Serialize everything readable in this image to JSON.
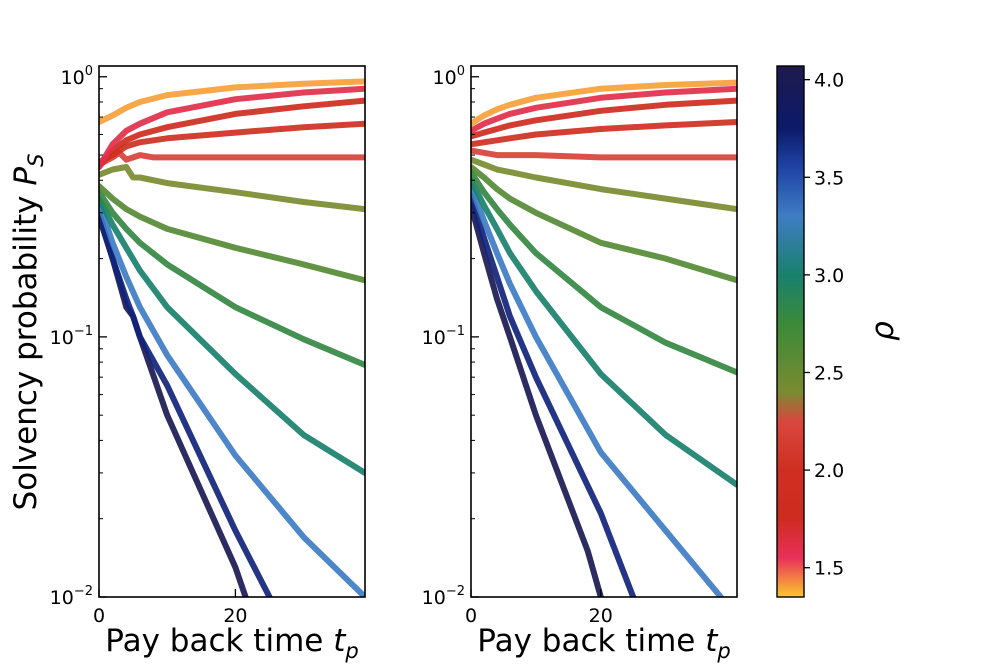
{
  "chart_data": [
    {
      "type": "line",
      "panel": "left",
      "xlabel": "Pay back time t_p",
      "ylabel": "Solvency probability P_S",
      "yscale": "log",
      "xlim": [
        0,
        39
      ],
      "ylim": [
        0.01,
        1.1
      ],
      "xticks": [
        {
          "value": 0,
          "label": "0"
        },
        {
          "value": 20,
          "label": "20"
        }
      ],
      "yticks": [
        {
          "value": 1,
          "base": "10",
          "exp": "0"
        },
        {
          "value": 0.1,
          "base": "10",
          "exp": "−1"
        },
        {
          "value": 0.01,
          "base": "10",
          "exp": "−2"
        }
      ],
      "grid": false,
      "series": [
        {
          "rho": 1.4,
          "x": [
            0,
            2,
            4,
            6,
            10,
            20,
            30,
            39
          ],
          "y": [
            0.67,
            0.71,
            0.76,
            0.8,
            0.85,
            0.91,
            0.94,
            0.96
          ]
        },
        {
          "rho": 1.6,
          "x": [
            0,
            2,
            4,
            6,
            10,
            20,
            30,
            39
          ],
          "y": [
            0.45,
            0.55,
            0.62,
            0.66,
            0.73,
            0.82,
            0.87,
            0.9
          ]
        },
        {
          "rho": 1.8,
          "x": [
            0,
            2,
            4,
            6,
            10,
            20,
            30,
            39
          ],
          "y": [
            0.45,
            0.52,
            0.57,
            0.6,
            0.64,
            0.72,
            0.77,
            0.81
          ]
        },
        {
          "rho": 2.0,
          "x": [
            0,
            2,
            4,
            6,
            10,
            20,
            30,
            39
          ],
          "y": [
            0.47,
            0.5,
            0.54,
            0.56,
            0.58,
            0.61,
            0.64,
            0.66
          ]
        },
        {
          "rho": 2.2,
          "x": [
            0,
            2,
            3,
            4,
            6,
            8,
            10,
            20,
            30,
            39
          ],
          "y": [
            0.46,
            0.49,
            0.51,
            0.48,
            0.5,
            0.49,
            0.49,
            0.49,
            0.49,
            0.49
          ]
        },
        {
          "rho": 2.4,
          "x": [
            0,
            2,
            4,
            5,
            6,
            10,
            20,
            30,
            39
          ],
          "y": [
            0.42,
            0.44,
            0.45,
            0.41,
            0.41,
            0.39,
            0.36,
            0.33,
            0.31
          ]
        },
        {
          "rho": 2.6,
          "x": [
            0,
            2,
            4,
            6,
            10,
            20,
            30,
            39
          ],
          "y": [
            0.38,
            0.34,
            0.31,
            0.29,
            0.26,
            0.22,
            0.19,
            0.165
          ]
        },
        {
          "rho": 2.8,
          "x": [
            0,
            2,
            4,
            6,
            10,
            20,
            30,
            39
          ],
          "y": [
            0.36,
            0.3,
            0.26,
            0.23,
            0.19,
            0.13,
            0.098,
            0.078
          ]
        },
        {
          "rho": 3.0,
          "x": [
            0,
            2,
            4,
            6,
            10,
            20,
            30,
            39
          ],
          "y": [
            0.34,
            0.27,
            0.22,
            0.18,
            0.13,
            0.072,
            0.042,
            0.03
          ]
        },
        {
          "rho": 3.3,
          "x": [
            0,
            2,
            4,
            6,
            10,
            20,
            30,
            39
          ],
          "y": [
            0.33,
            0.23,
            0.17,
            0.13,
            0.085,
            0.035,
            0.017,
            0.01
          ]
        },
        {
          "rho": 3.7,
          "x": [
            0,
            2,
            4,
            5,
            6,
            10,
            20,
            25
          ],
          "y": [
            0.3,
            0.2,
            0.14,
            0.12,
            0.1,
            0.065,
            0.018,
            0.01
          ]
        },
        {
          "rho": 4.0,
          "x": [
            0,
            2,
            4,
            5,
            6,
            10,
            20,
            21.5
          ],
          "y": [
            0.29,
            0.2,
            0.13,
            0.12,
            0.1,
            0.05,
            0.013,
            0.01
          ]
        }
      ]
    },
    {
      "type": "line",
      "panel": "right",
      "xlabel": "Pay back time t_p",
      "ylabel": "",
      "yscale": "log",
      "xlim": [
        0,
        41
      ],
      "ylim": [
        0.01,
        1.1
      ],
      "xticks": [
        {
          "value": 0,
          "label": "0"
        },
        {
          "value": 20,
          "label": "20"
        }
      ],
      "yticks": [
        {
          "value": 1,
          "base": "10",
          "exp": "0"
        },
        {
          "value": 0.1,
          "base": "10",
          "exp": "−1"
        },
        {
          "value": 0.01,
          "base": "10",
          "exp": "−2"
        }
      ],
      "grid": false,
      "series": [
        {
          "rho": 1.4,
          "x": [
            0,
            2,
            4,
            6,
            10,
            20,
            30,
            41
          ],
          "y": [
            0.66,
            0.71,
            0.75,
            0.78,
            0.83,
            0.9,
            0.93,
            0.95
          ]
        },
        {
          "rho": 1.6,
          "x": [
            0,
            2,
            4,
            6,
            10,
            20,
            30,
            41
          ],
          "y": [
            0.62,
            0.66,
            0.69,
            0.72,
            0.76,
            0.83,
            0.87,
            0.9
          ]
        },
        {
          "rho": 1.8,
          "x": [
            0,
            2,
            4,
            6,
            10,
            20,
            30,
            41
          ],
          "y": [
            0.59,
            0.61,
            0.63,
            0.65,
            0.68,
            0.74,
            0.78,
            0.81
          ]
        },
        {
          "rho": 2.0,
          "x": [
            0,
            2,
            4,
            6,
            10,
            20,
            30,
            41
          ],
          "y": [
            0.55,
            0.56,
            0.57,
            0.58,
            0.6,
            0.63,
            0.65,
            0.67
          ]
        },
        {
          "rho": 2.2,
          "x": [
            0,
            2,
            4,
            6,
            10,
            20,
            30,
            41
          ],
          "y": [
            0.52,
            0.51,
            0.5,
            0.5,
            0.5,
            0.49,
            0.49,
            0.49
          ]
        },
        {
          "rho": 2.4,
          "x": [
            0,
            2,
            4,
            6,
            10,
            20,
            30,
            41
          ],
          "y": [
            0.48,
            0.46,
            0.44,
            0.43,
            0.41,
            0.37,
            0.34,
            0.31
          ]
        },
        {
          "rho": 2.6,
          "x": [
            0,
            2,
            4,
            6,
            10,
            20,
            30,
            41
          ],
          "y": [
            0.45,
            0.41,
            0.37,
            0.34,
            0.3,
            0.23,
            0.2,
            0.165
          ]
        },
        {
          "rho": 2.8,
          "x": [
            0,
            2,
            4,
            6,
            10,
            20,
            30,
            41
          ],
          "y": [
            0.43,
            0.36,
            0.31,
            0.27,
            0.21,
            0.13,
            0.095,
            0.073
          ]
        },
        {
          "rho": 3.0,
          "x": [
            0,
            2,
            4,
            6,
            10,
            20,
            30,
            41
          ],
          "y": [
            0.4,
            0.32,
            0.26,
            0.21,
            0.15,
            0.072,
            0.042,
            0.027
          ]
        },
        {
          "rho": 3.3,
          "x": [
            0,
            2,
            4,
            6,
            10,
            20,
            30,
            38.5
          ],
          "y": [
            0.38,
            0.28,
            0.21,
            0.16,
            0.1,
            0.036,
            0.018,
            0.01
          ]
        },
        {
          "rho": 3.7,
          "x": [
            0,
            2,
            4,
            6,
            10,
            20,
            25
          ],
          "y": [
            0.35,
            0.24,
            0.17,
            0.12,
            0.07,
            0.021,
            0.01
          ]
        },
        {
          "rho": 4.0,
          "x": [
            0,
            2,
            4,
            6,
            10,
            18,
            20
          ],
          "y": [
            0.32,
            0.21,
            0.14,
            0.1,
            0.05,
            0.015,
            0.01
          ]
        }
      ]
    }
  ],
  "colorbar": {
    "label": "ρ",
    "range": [
      1.35,
      4.07
    ],
    "ticks": [
      {
        "value": 1.5,
        "label": "1.5"
      },
      {
        "value": 2.0,
        "label": "2.0"
      },
      {
        "value": 2.5,
        "label": "2.5"
      },
      {
        "value": 3.0,
        "label": "3.0"
      },
      {
        "value": 3.5,
        "label": "3.5"
      },
      {
        "value": 4.0,
        "label": "4.0"
      }
    ],
    "colormap": [
      {
        "value": 1.35,
        "color": "#fcc72f"
      },
      {
        "value": 1.55,
        "color": "#e8305a"
      },
      {
        "value": 1.75,
        "color": "#cf2b20"
      },
      {
        "value": 2.0,
        "color": "#cf2f21"
      },
      {
        "value": 2.25,
        "color": "#d9473f"
      },
      {
        "value": 2.4,
        "color": "#7a8b30"
      },
      {
        "value": 2.75,
        "color": "#3b8a39"
      },
      {
        "value": 3.0,
        "color": "#19806d"
      },
      {
        "value": 3.3,
        "color": "#3e7dc4"
      },
      {
        "value": 3.55,
        "color": "#1f43a5"
      },
      {
        "value": 3.75,
        "color": "#0b1a6a"
      },
      {
        "value": 4.07,
        "color": "#1f1a4e"
      }
    ]
  },
  "labels": {
    "ylabel_main": "Solvency probability ",
    "ylabel_var": "P",
    "ylabel_sub": "S",
    "xlabel_main": "Pay back time ",
    "xlabel_var": "t",
    "xlabel_sub": "p",
    "colorbar_label": "ρ"
  }
}
